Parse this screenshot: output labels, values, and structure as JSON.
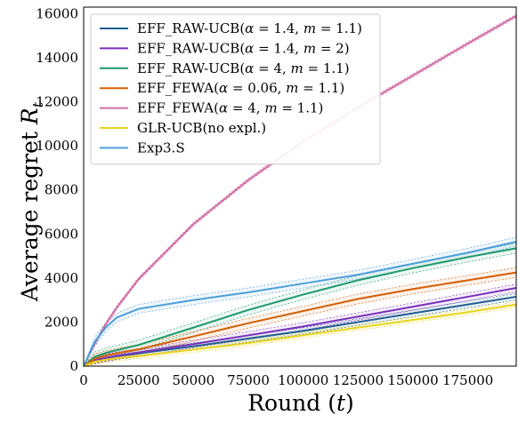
{
  "chart_data": {
    "type": "line",
    "xlabel": "Round (t)",
    "xlabel_main": "Round (",
    "xlabel_var": "t",
    "xlabel_close": ")",
    "ylabel": "Average regret R_t",
    "ylabel_main": "Average regret ",
    "ylabel_var": "R",
    "ylabel_sub": "t",
    "xlim": [
      0,
      197000
    ],
    "ylim": [
      0,
      16300
    ],
    "xticks": [
      0,
      25000,
      50000,
      75000,
      100000,
      125000,
      150000,
      175000
    ],
    "yticks": [
      0,
      2000,
      4000,
      6000,
      8000,
      10000,
      12000,
      14000,
      16000
    ],
    "grid": false,
    "legend_position": "top-left",
    "x": [
      0,
      5000,
      10000,
      15000,
      25000,
      50000,
      75000,
      100000,
      125000,
      150000,
      175000,
      197000
    ],
    "series": [
      {
        "name": "EFF_RAW-UCB(α = 1.4, m = 1.1)",
        "color": "#1f5f8f",
        "values": [
          0,
          250,
          370,
          450,
          580,
          900,
          1250,
          1600,
          2000,
          2400,
          2800,
          3150
        ],
        "band": 150
      },
      {
        "name": "EFF_RAW-UCB(α = 1.4, m = 2)",
        "color": "#7b2fbe",
        "values": [
          0,
          260,
          380,
          470,
          620,
          1000,
          1400,
          1800,
          2250,
          2700,
          3150,
          3550
        ],
        "band": 170
      },
      {
        "name": "EFF_RAW-UCB(α = 4, m = 1.1)",
        "color": "#1d9a6c",
        "values": [
          0,
          420,
          600,
          720,
          960,
          1750,
          2550,
          3250,
          3900,
          4450,
          4950,
          5350
        ],
        "band": 220
      },
      {
        "name": "EFF_FEWA(α = 0.06, m = 1.1)",
        "color": "#d55e00",
        "values": [
          0,
          330,
          480,
          580,
          760,
          1350,
          1950,
          2500,
          3050,
          3500,
          3900,
          4250
        ],
        "band": 220
      },
      {
        "name": "EFF_FEWA(α = 4, m = 1.1)",
        "color": "#d16fa5",
        "values": [
          0,
          1000,
          1900,
          2650,
          3950,
          6450,
          8450,
          10200,
          11750,
          13200,
          14650,
          15900
        ],
        "band": 80
      },
      {
        "name": "GLR-UCB(no expl.)",
        "color": "#e8d41c",
        "values": [
          0,
          200,
          290,
          360,
          460,
          750,
          1050,
          1400,
          1750,
          2100,
          2450,
          2800
        ],
        "band": 120
      },
      {
        "name": "Exp3.S",
        "color": "#4a9fd9",
        "values": [
          0,
          1100,
          1750,
          2200,
          2600,
          3000,
          3350,
          3750,
          4150,
          4650,
          5150,
          5650
        ],
        "band": 200
      }
    ],
    "legend": {
      "entries": [
        {
          "prefix": "EFF_RAW-UCB(",
          "alpha": "1.4",
          "m": "1.1"
        },
        {
          "prefix": "EFF_RAW-UCB(",
          "alpha": "1.4",
          "m": "2"
        },
        {
          "prefix": "EFF_RAW-UCB(",
          "alpha": "4",
          "m": "1.1"
        },
        {
          "prefix": "EFF_FEWA(",
          "alpha": "0.06",
          "m": "1.1"
        },
        {
          "prefix": "EFF_FEWA(",
          "alpha": "4",
          "m": "1.1"
        },
        {
          "prefix": "GLR-UCB(no expl.)",
          "alpha": "",
          "m": ""
        },
        {
          "prefix": "Exp3.S",
          "alpha": "",
          "m": ""
        }
      ],
      "alpha_symbol": "α",
      "m_symbol": "m",
      "eq": " = ",
      "sep": ", ",
      "close": ")"
    }
  }
}
